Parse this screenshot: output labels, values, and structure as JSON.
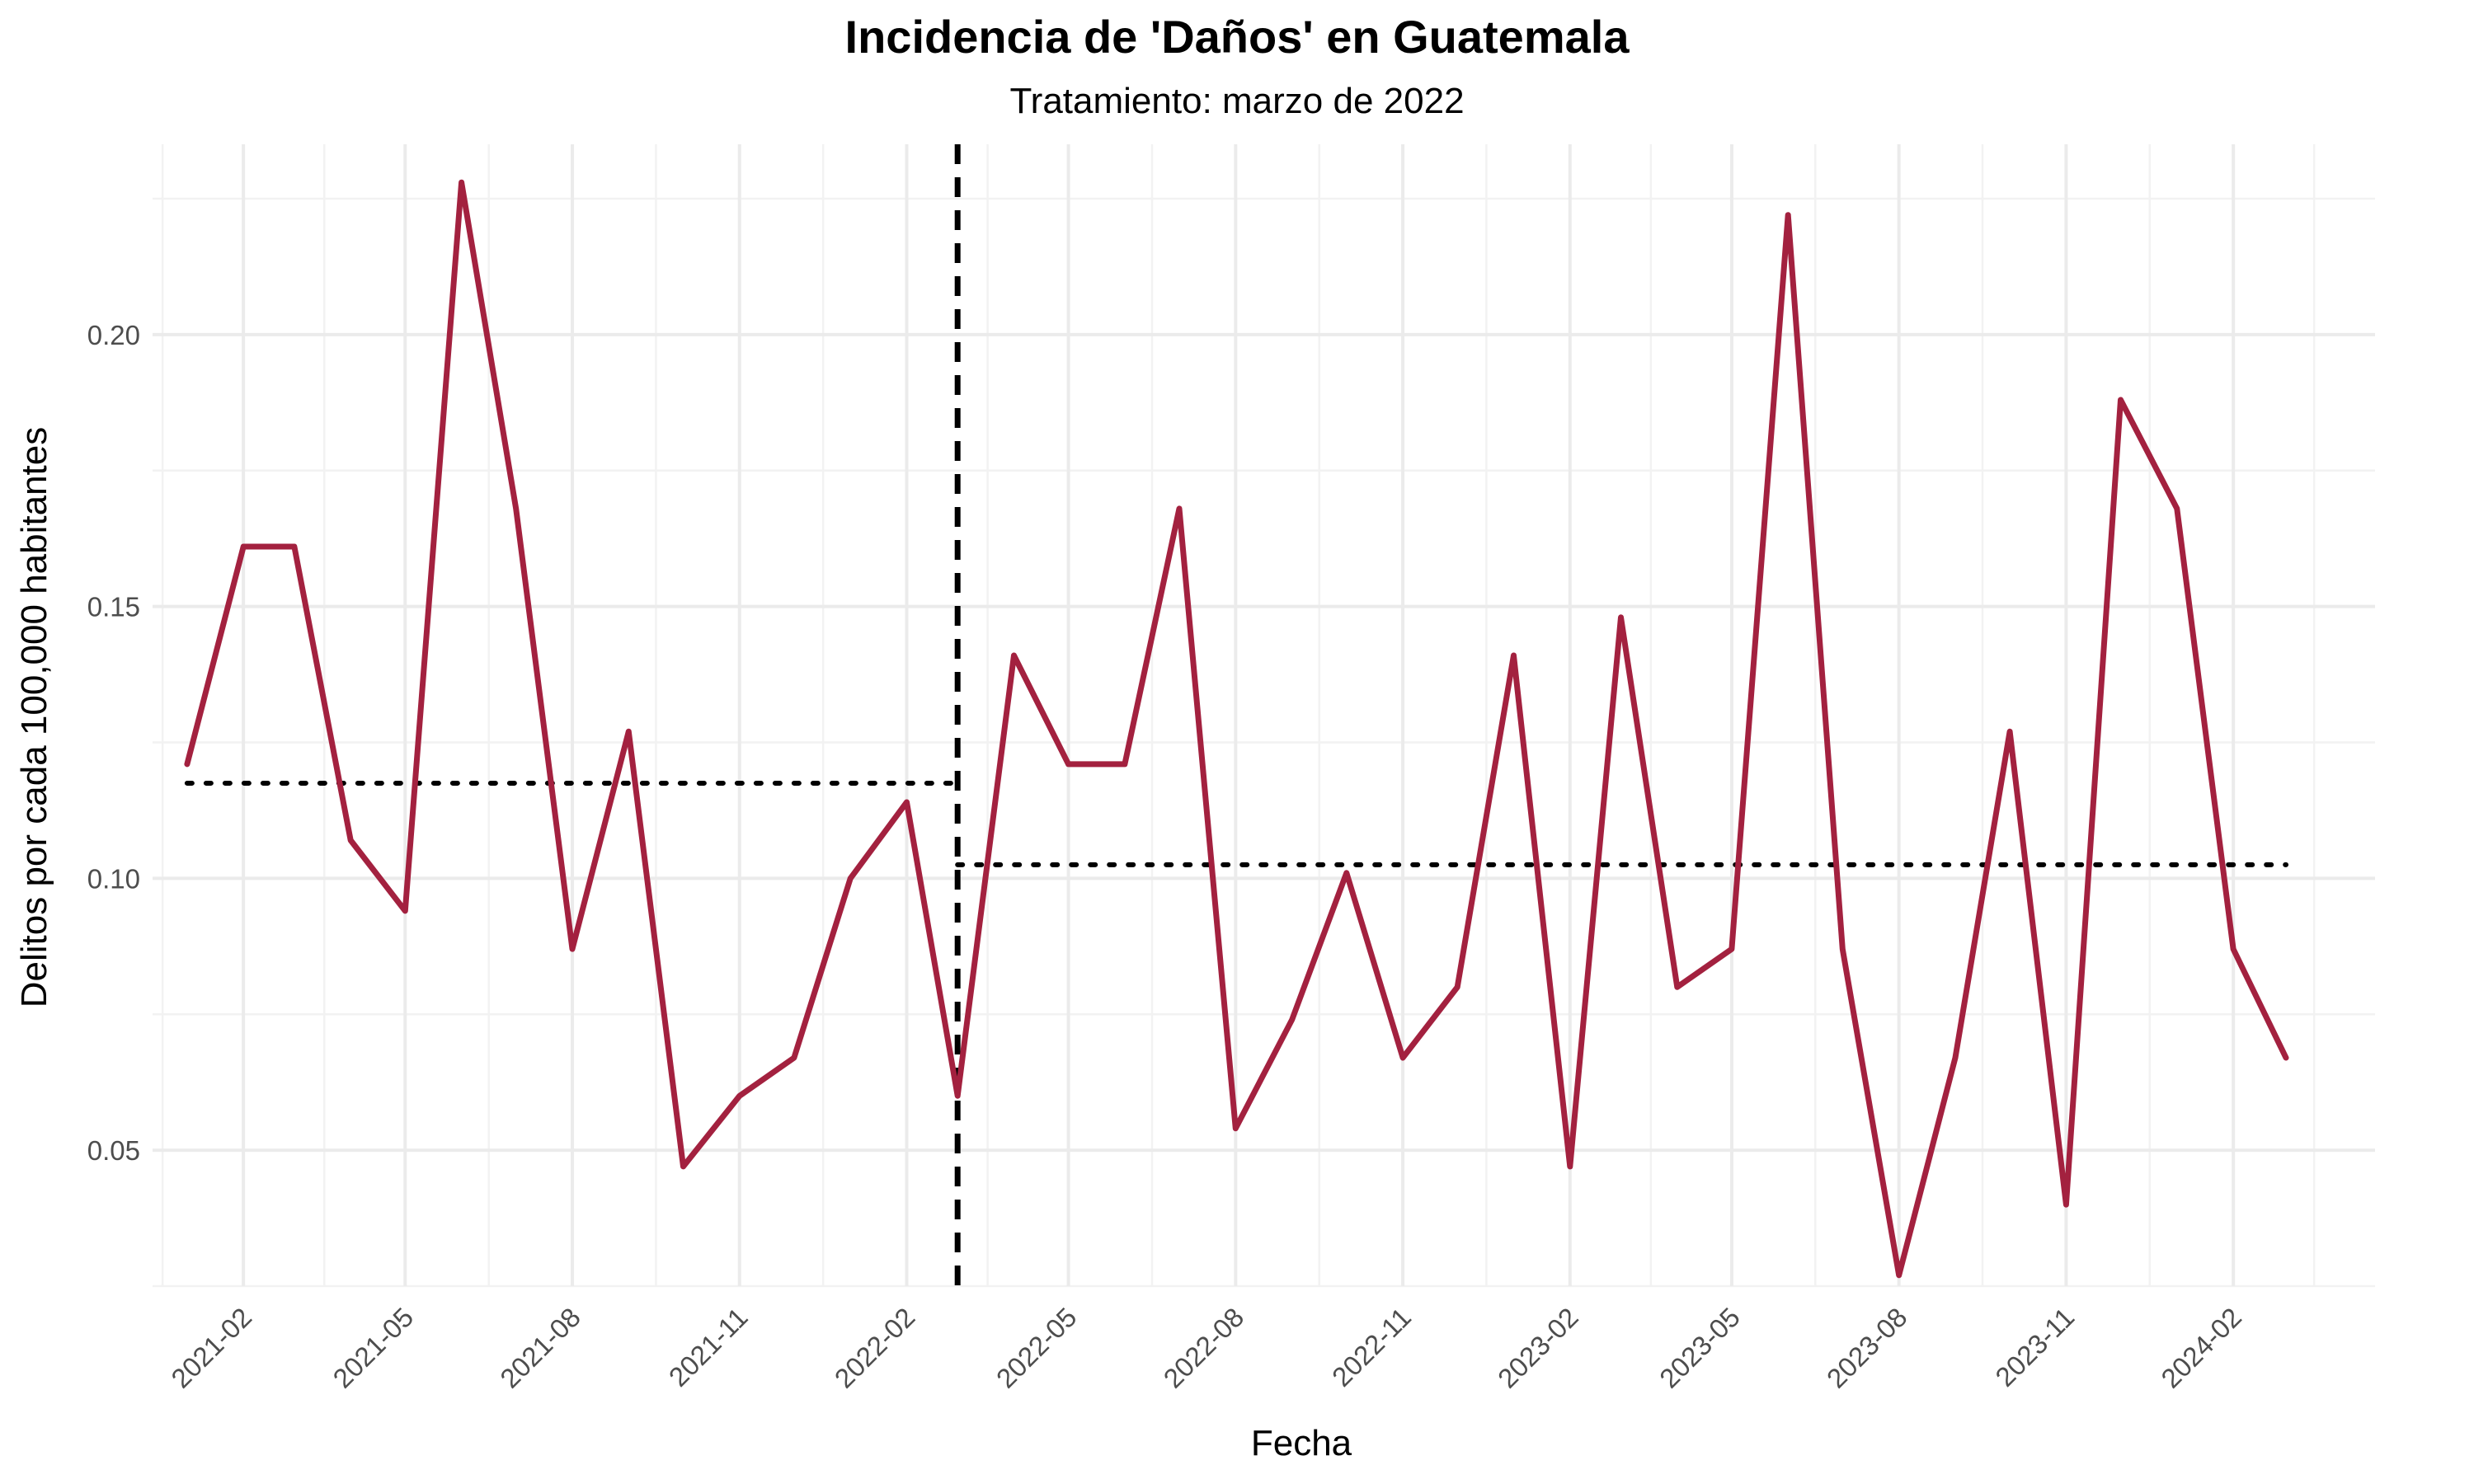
{
  "chart_data": {
    "type": "line",
    "title": "Incidencia de 'Daños' en Guatemala",
    "subtitle": "Tratamiento: marzo de 2022",
    "xlabel": "Fecha",
    "ylabel": "Delitos por cada 100,000 habitantes",
    "ylim": [
      0.025,
      0.235
    ],
    "xlim": [
      "2020-12-13",
      "2024-04-19"
    ],
    "grid": true,
    "y_ticks": [
      0.05,
      0.1,
      0.15,
      0.2
    ],
    "y_tick_labels": [
      "0.05",
      "0.10",
      "0.15",
      "0.20"
    ],
    "x_ticks": [
      "2021-02-01",
      "2021-05-01",
      "2021-08-01",
      "2021-11-01",
      "2022-02-01",
      "2022-05-01",
      "2022-08-01",
      "2022-11-01",
      "2023-02-01",
      "2023-05-01",
      "2023-08-01",
      "2023-11-01",
      "2024-02-01"
    ],
    "x_tick_labels": [
      "2021-02",
      "2021-05",
      "2021-08",
      "2021-11",
      "2022-02",
      "2022-05",
      "2022-08",
      "2022-11",
      "2023-02",
      "2023-05",
      "2023-08",
      "2023-11",
      "2024-02"
    ],
    "series": [
      {
        "color": "#A3213F",
        "x": [
          "2021-01-01",
          "2021-02-01",
          "2021-03-01",
          "2021-04-01",
          "2021-05-01",
          "2021-06-01",
          "2021-07-01",
          "2021-08-01",
          "2021-09-01",
          "2021-10-01",
          "2021-11-01",
          "2021-12-01",
          "2022-01-01",
          "2022-02-01",
          "2022-03-01",
          "2022-04-01",
          "2022-05-01",
          "2022-06-01",
          "2022-07-01",
          "2022-08-01",
          "2022-09-01",
          "2022-10-01",
          "2022-11-01",
          "2022-12-01",
          "2023-01-01",
          "2023-02-01",
          "2023-03-01",
          "2023-04-01",
          "2023-05-01",
          "2023-06-01",
          "2023-07-01",
          "2023-08-01",
          "2023-09-01",
          "2023-10-01",
          "2023-11-01",
          "2023-12-01",
          "2024-01-01",
          "2024-02-01",
          "2024-03-01"
        ],
        "values": [
          0.121,
          0.161,
          0.161,
          0.107,
          0.094,
          0.228,
          0.168,
          0.087,
          0.127,
          0.047,
          0.06,
          0.067,
          0.1,
          0.114,
          0.06,
          0.141,
          0.121,
          0.121,
          0.168,
          0.054,
          0.074,
          0.101,
          0.067,
          0.08,
          0.141,
          0.047,
          0.148,
          0.08,
          0.087,
          0.222,
          0.087,
          0.027,
          0.067,
          0.127,
          0.04,
          0.188,
          0.168,
          0.087,
          0.067
        ]
      }
    ],
    "reference_lines": [
      {
        "kind": "vertical",
        "style": "dashed",
        "color": "#000000",
        "x": "2022-03-01"
      },
      {
        "kind": "horizontal-segment",
        "style": "dotted",
        "color": "#000000",
        "y": 0.1175,
        "x_start": "2021-01-01",
        "x_end": "2022-03-01"
      },
      {
        "kind": "horizontal-segment",
        "style": "dotted",
        "color": "#000000",
        "y": 0.1025,
        "x_start": "2022-03-01",
        "x_end": "2024-03-01"
      }
    ]
  }
}
